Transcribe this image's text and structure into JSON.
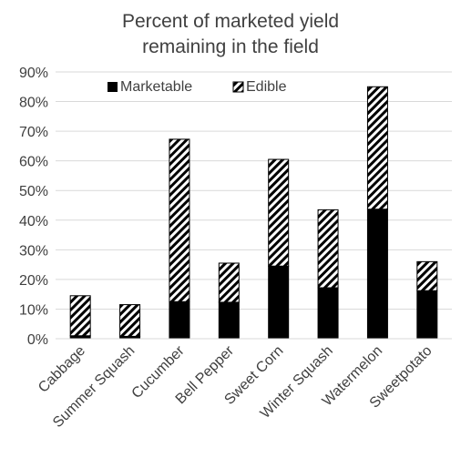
{
  "chart_data": {
    "type": "bar",
    "stacked": true,
    "title_lines": [
      "Percent of marketed yield",
      "remaining in the field"
    ],
    "categories": [
      "Cabbage",
      "Summer Squash",
      "Cucumber",
      "Bell Pepper",
      "Sweet Corn",
      "Winter Squash",
      "Watermelon",
      "Sweetpotato"
    ],
    "series": [
      {
        "name": "Marketable",
        "pattern": "solid",
        "color": "#000000",
        "values": [
          1.0,
          0.8,
          12.5,
          12.3,
          24.5,
          17.2,
          43.7,
          16.2
        ]
      },
      {
        "name": "Edible",
        "pattern": "diagonal-hatch",
        "color": "#000000",
        "values": [
          13.5,
          10.7,
          54.8,
          13.2,
          36.0,
          26.3,
          41.3,
          9.8
        ]
      }
    ],
    "ylim": [
      0,
      90
    ],
    "yticks": [
      0,
      10,
      20,
      30,
      40,
      50,
      60,
      70,
      80,
      90
    ],
    "ytick_format": "percent",
    "ytick_labels": [
      "0%",
      "10%",
      "20%",
      "30%",
      "40%",
      "50%",
      "60%",
      "70%",
      "80%",
      "90%"
    ],
    "xlabel": "",
    "ylabel": "",
    "grid": true,
    "legend_position": "top-left"
  }
}
